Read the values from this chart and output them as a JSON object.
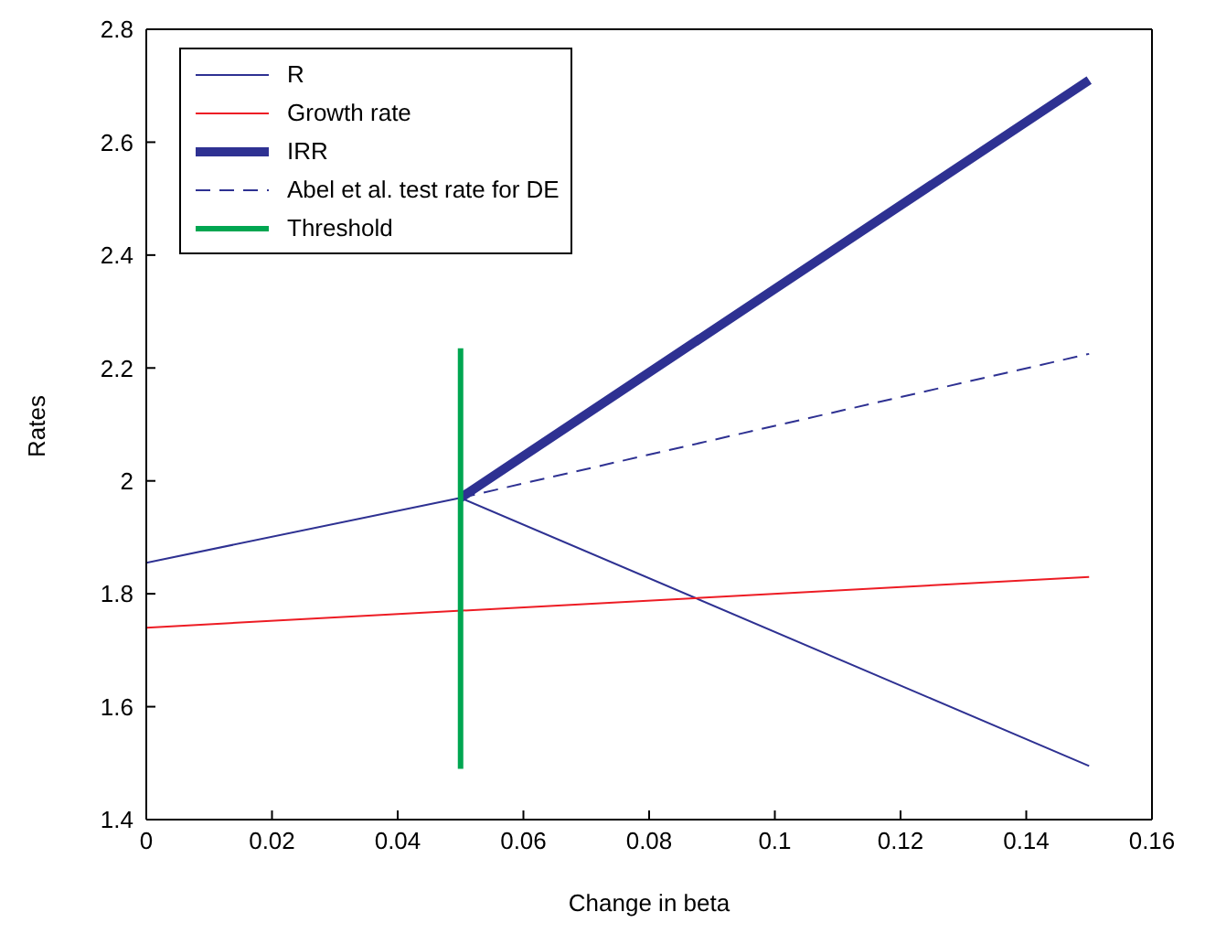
{
  "chart_data": {
    "type": "line",
    "xlabel": "Change in beta",
    "ylabel": "Rates",
    "xlim": [
      0,
      0.16
    ],
    "xticks": [
      0,
      0.02,
      0.04,
      0.06,
      0.08,
      0.1,
      0.12,
      0.14,
      0.16
    ],
    "ylim": [
      1.4,
      2.8
    ],
    "yticks": [
      1.4,
      1.6,
      1.8,
      2,
      2.2,
      2.4,
      2.6,
      2.8
    ],
    "legend": "top left",
    "series": [
      {
        "name": "R",
        "color": "#2e3192",
        "x": [
          0,
          0.05,
          0.15
        ],
        "values": [
          1.855,
          1.97,
          1.495
        ]
      },
      {
        "name": "Growth rate",
        "color": "#ed1c24",
        "x": [
          0,
          0.15
        ],
        "values": [
          1.74,
          1.83
        ]
      },
      {
        "name": "IRR",
        "color": "#2e3192",
        "x": [
          0.05,
          0.1,
          0.15
        ],
        "values": [
          1.97,
          2.34,
          2.71
        ]
      },
      {
        "name": "Abel et al. test rate for DE",
        "color": "#2e3192",
        "line_style": "dashed",
        "x": [
          0.05,
          0.15
        ],
        "values": [
          1.97,
          2.225
        ]
      },
      {
        "name": "Threshold",
        "color": "#00a651",
        "x": [
          0.05,
          0.05
        ],
        "values": [
          1.49,
          2.235
        ]
      }
    ]
  }
}
